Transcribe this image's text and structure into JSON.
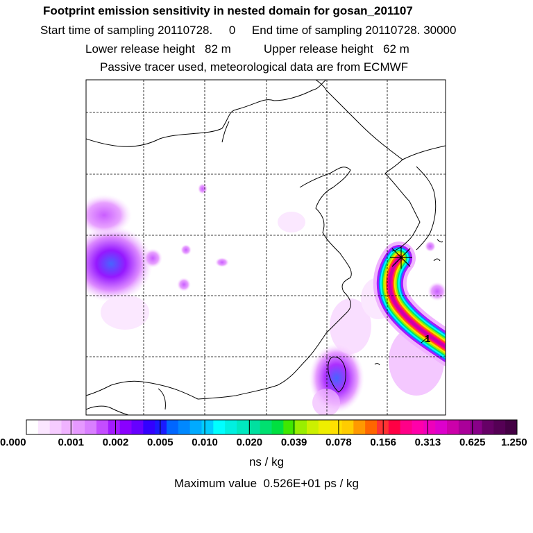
{
  "titles": {
    "line1": "Footprint emission sensitivity in nested domain for gosan_201107",
    "line2": "Start time of sampling 20110728.     0     End time of sampling 20110728. 30000",
    "line3": "Lower release height   82 m          Upper release height   62 m",
    "line4": "Passive tracer used, meteorological data are from ECMWF"
  },
  "colorbar": {
    "labels": [
      "0.000",
      "0.001",
      "0.002",
      "0.005",
      "0.010",
      "0.020",
      "0.039",
      "0.078",
      "0.156",
      "0.313",
      "0.625",
      "1.250"
    ],
    "colors": [
      "#ffffff",
      "#fbe6ff",
      "#f6ccff",
      "#f0b3ff",
      "#e699ff",
      "#d97fff",
      "#c44dff",
      "#a31aff",
      "#8a00ff",
      "#6600ff",
      "#3300ff",
      "#1a1aff",
      "#0066ff",
      "#0088ff",
      "#00aaff",
      "#00ccff",
      "#00ffff",
      "#00f0e0",
      "#00e8c0",
      "#00e0a0",
      "#00e070",
      "#00e040",
      "#40e800",
      "#99ee00",
      "#ccf000",
      "#eeee00",
      "#ffe000",
      "#ffcc00",
      "#ff9900",
      "#ff6600",
      "#ff3333",
      "#ff0044",
      "#ff0088",
      "#ff00aa",
      "#ee00bb",
      "#dd00cc",
      "#cc00aa",
      "#aa0099",
      "#880088",
      "#660066",
      "#550055",
      "#440044"
    ],
    "units": "ns / kg",
    "max_value_text": "Maximum value  0.526E+01 ps / kg"
  },
  "map": {
    "receptor_label": "1",
    "release_marker": "star"
  }
}
